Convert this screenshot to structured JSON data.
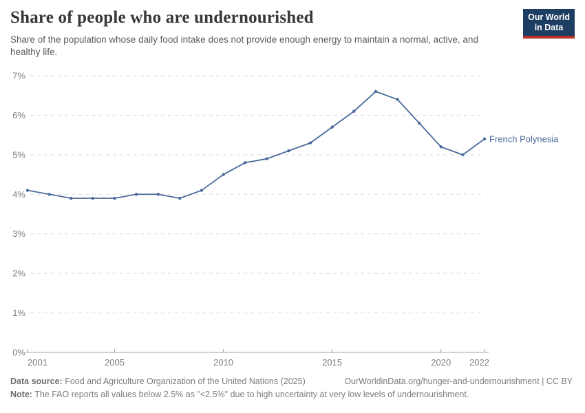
{
  "header": {
    "title": "Share of people who are undernourished",
    "subtitle": "Share of the population whose daily food intake does not provide enough energy to maintain a normal, active, and healthy life."
  },
  "logo": {
    "line1": "Our World",
    "line2": "in Data",
    "bg_color": "#1d3d63",
    "accent_color": "#b9332b"
  },
  "chart_data": {
    "type": "line",
    "title": "Share of people who are undernourished",
    "xlabel": "",
    "ylabel": "",
    "xlim": [
      2001,
      2022
    ],
    "ylim": [
      0,
      7
    ],
    "grid": "horizontal-dashed",
    "legend_position": "end-of-line-label",
    "x": [
      2001,
      2002,
      2003,
      2004,
      2005,
      2006,
      2007,
      2008,
      2009,
      2010,
      2011,
      2012,
      2013,
      2014,
      2015,
      2016,
      2017,
      2018,
      2019,
      2020,
      2021,
      2022
    ],
    "series": [
      {
        "name": "French Polynesia",
        "color": "#4c6a9c",
        "values": [
          4.1,
          4.0,
          3.9,
          3.9,
          3.9,
          4.0,
          4.0,
          3.9,
          4.1,
          4.5,
          4.8,
          4.9,
          5.1,
          5.3,
          5.7,
          6.1,
          6.6,
          6.4,
          5.8,
          5.2,
          5.0,
          5.4
        ]
      }
    ],
    "x_ticks": [
      {
        "v": 2001,
        "label": "2001"
      },
      {
        "v": 2005,
        "label": "2005"
      },
      {
        "v": 2010,
        "label": "2010"
      },
      {
        "v": 2015,
        "label": "2015"
      },
      {
        "v": 2020,
        "label": "2020"
      },
      {
        "v": 2022,
        "label": "2022"
      }
    ],
    "y_ticks": [
      {
        "v": 0,
        "label": "0%"
      },
      {
        "v": 1,
        "label": "1%"
      },
      {
        "v": 2,
        "label": "2%"
      },
      {
        "v": 3,
        "label": "3%"
      },
      {
        "v": 4,
        "label": "4%"
      },
      {
        "v": 5,
        "label": "5%"
      },
      {
        "v": 6,
        "label": "6%"
      },
      {
        "v": 7,
        "label": "7%"
      }
    ],
    "style": {
      "line_color": "#4c6a9c",
      "gridline_color": "#dcdcdc",
      "axis_color": "#a3a3a3",
      "tick_label_color": "#7d7d7d"
    }
  },
  "footer": {
    "datasource_label": "Data source:",
    "datasource_text": "Food and Agriculture Organization of the United Nations (2025)",
    "citation": "OurWorldinData.org/hunger-and-undernourishment",
    "divider": "|",
    "license": "CC BY",
    "note_label": "Note:",
    "note_text": "The FAO reports all values below 2.5% as \"<2.5%\" due to high uncertainty at very low levels of undernourishment."
  }
}
